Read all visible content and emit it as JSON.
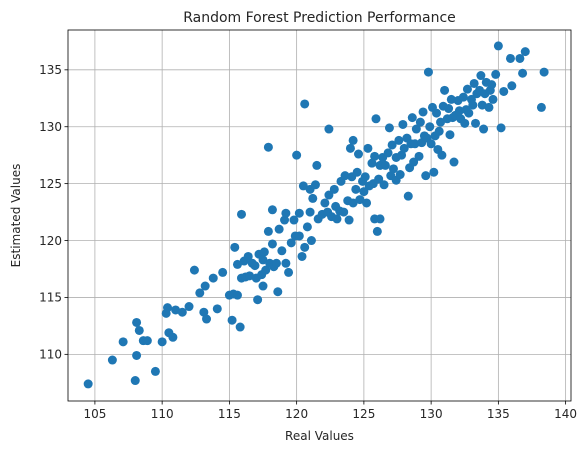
{
  "chart_data": {
    "type": "scatter",
    "title": "Random Forest Prediction Performance",
    "xlabel": "Real Values",
    "ylabel": "Estimated Values",
    "xlim": [
      103,
      140.4
    ],
    "ylim": [
      105.9,
      138.5
    ],
    "xticks": [
      105,
      110,
      115,
      120,
      125,
      130,
      135,
      140
    ],
    "yticks": [
      110,
      115,
      120,
      125,
      130,
      135
    ],
    "grid": true,
    "marker_color": "#1f77b4",
    "points": [
      [
        104.5,
        107.4
      ],
      [
        106.3,
        109.5
      ],
      [
        107.1,
        111.1
      ],
      [
        108.0,
        107.7
      ],
      [
        108.1,
        109.9
      ],
      [
        108.1,
        112.8
      ],
      [
        108.3,
        112.1
      ],
      [
        108.6,
        111.2
      ],
      [
        108.9,
        111.2
      ],
      [
        109.5,
        108.5
      ],
      [
        110.0,
        111.1
      ],
      [
        110.3,
        113.6
      ],
      [
        110.4,
        114.1
      ],
      [
        110.5,
        111.9
      ],
      [
        110.8,
        111.5
      ],
      [
        111.0,
        113.9
      ],
      [
        111.5,
        113.7
      ],
      [
        112.0,
        114.2
      ],
      [
        112.4,
        117.4
      ],
      [
        112.8,
        115.4
      ],
      [
        113.1,
        113.7
      ],
      [
        113.3,
        113.1
      ],
      [
        113.2,
        116.0
      ],
      [
        113.8,
        116.7
      ],
      [
        114.1,
        114.0
      ],
      [
        114.5,
        117.2
      ],
      [
        115.0,
        115.2
      ],
      [
        115.3,
        115.3
      ],
      [
        115.4,
        119.4
      ],
      [
        115.2,
        113.0
      ],
      [
        115.6,
        115.2
      ],
      [
        115.6,
        117.9
      ],
      [
        115.8,
        112.4
      ],
      [
        115.9,
        122.3
      ],
      [
        115.9,
        116.7
      ],
      [
        116.1,
        118.2
      ],
      [
        116.2,
        116.8
      ],
      [
        116.4,
        118.6
      ],
      [
        116.5,
        116.9
      ],
      [
        116.7,
        118.0
      ],
      [
        116.9,
        117.8
      ],
      [
        117.0,
        116.7
      ],
      [
        117.1,
        114.8
      ],
      [
        117.2,
        118.8
      ],
      [
        117.4,
        117.0
      ],
      [
        117.5,
        116.0
      ],
      [
        117.5,
        118.3
      ],
      [
        117.6,
        119.0
      ],
      [
        117.7,
        117.4
      ],
      [
        117.9,
        120.8
      ],
      [
        117.9,
        128.2
      ],
      [
        118.0,
        118.0
      ],
      [
        118.2,
        119.7
      ],
      [
        118.3,
        117.7
      ],
      [
        118.2,
        122.7
      ],
      [
        118.6,
        115.5
      ],
      [
        118.5,
        118.0
      ],
      [
        118.7,
        121.0
      ],
      [
        118.9,
        119.1
      ],
      [
        119.1,
        121.8
      ],
      [
        119.2,
        118.0
      ],
      [
        119.2,
        122.4
      ],
      [
        119.4,
        117.2
      ],
      [
        119.6,
        119.8
      ],
      [
        119.8,
        121.8
      ],
      [
        119.9,
        120.4
      ],
      [
        120.0,
        127.5
      ],
      [
        120.2,
        120.4
      ],
      [
        120.2,
        122.4
      ],
      [
        120.4,
        118.6
      ],
      [
        120.5,
        124.8
      ],
      [
        120.6,
        119.4
      ],
      [
        120.6,
        132.0
      ],
      [
        120.8,
        121.2
      ],
      [
        121.0,
        124.5
      ],
      [
        121.0,
        122.5
      ],
      [
        121.1,
        120.0
      ],
      [
        121.2,
        123.7
      ],
      [
        121.4,
        124.9
      ],
      [
        121.5,
        126.6
      ],
      [
        121.6,
        121.9
      ],
      [
        121.9,
        122.3
      ],
      [
        122.1,
        123.3
      ],
      [
        122.3,
        122.5
      ],
      [
        122.4,
        124.0
      ],
      [
        122.4,
        129.8
      ],
      [
        122.6,
        122.1
      ],
      [
        122.8,
        124.5
      ],
      [
        122.9,
        123.0
      ],
      [
        123.0,
        121.9
      ],
      [
        123.2,
        122.6
      ],
      [
        123.3,
        125.2
      ],
      [
        123.5,
        122.5
      ],
      [
        123.6,
        125.7
      ],
      [
        123.8,
        123.5
      ],
      [
        123.9,
        121.8
      ],
      [
        124.0,
        128.1
      ],
      [
        124.1,
        125.6
      ],
      [
        124.2,
        123.3
      ],
      [
        124.2,
        128.8
      ],
      [
        124.4,
        124.5
      ],
      [
        124.5,
        126.0
      ],
      [
        124.6,
        127.6
      ],
      [
        124.7,
        123.6
      ],
      [
        124.9,
        125.2
      ],
      [
        125.0,
        124.3
      ],
      [
        125.1,
        125.6
      ],
      [
        125.2,
        123.3
      ],
      [
        125.3,
        128.1
      ],
      [
        125.4,
        124.8
      ],
      [
        125.6,
        126.8
      ],
      [
        125.7,
        125.0
      ],
      [
        125.8,
        121.9
      ],
      [
        125.8,
        127.4
      ],
      [
        125.9,
        130.7
      ],
      [
        126.0,
        120.8
      ],
      [
        126.1,
        125.4
      ],
      [
        126.2,
        126.6
      ],
      [
        126.2,
        121.9
      ],
      [
        126.4,
        127.3
      ],
      [
        126.5,
        124.9
      ],
      [
        126.6,
        126.6
      ],
      [
        126.8,
        127.7
      ],
      [
        126.9,
        129.9
      ],
      [
        127.0,
        125.7
      ],
      [
        127.1,
        128.4
      ],
      [
        127.2,
        126.3
      ],
      [
        127.4,
        125.3
      ],
      [
        127.4,
        127.3
      ],
      [
        127.6,
        128.8
      ],
      [
        127.7,
        125.8
      ],
      [
        127.8,
        127.5
      ],
      [
        127.9,
        130.2
      ],
      [
        128.0,
        128.1
      ],
      [
        128.2,
        129.0
      ],
      [
        128.3,
        123.9
      ],
      [
        128.4,
        126.4
      ],
      [
        128.5,
        128.5
      ],
      [
        128.6,
        130.8
      ],
      [
        128.7,
        126.9
      ],
      [
        128.8,
        128.5
      ],
      [
        128.9,
        129.8
      ],
      [
        129.1,
        127.4
      ],
      [
        129.2,
        130.4
      ],
      [
        129.3,
        128.6
      ],
      [
        129.4,
        131.3
      ],
      [
        129.5,
        129.2
      ],
      [
        129.6,
        125.7
      ],
      [
        129.7,
        129.0
      ],
      [
        129.8,
        134.8
      ],
      [
        129.9,
        130.0
      ],
      [
        130.0,
        128.5
      ],
      [
        130.1,
        131.7
      ],
      [
        130.2,
        126.0
      ],
      [
        130.3,
        129.2
      ],
      [
        130.4,
        131.2
      ],
      [
        130.5,
        128.0
      ],
      [
        130.6,
        129.6
      ],
      [
        130.7,
        130.4
      ],
      [
        130.8,
        127.5
      ],
      [
        130.9,
        131.8
      ],
      [
        131.0,
        133.2
      ],
      [
        131.2,
        130.7
      ],
      [
        131.3,
        131.6
      ],
      [
        131.4,
        129.3
      ],
      [
        131.5,
        132.4
      ],
      [
        131.6,
        130.8
      ],
      [
        131.7,
        126.9
      ],
      [
        131.8,
        131.0
      ],
      [
        132.0,
        132.3
      ],
      [
        132.1,
        131.4
      ],
      [
        132.2,
        130.7
      ],
      [
        132.4,
        132.6
      ],
      [
        132.5,
        130.3
      ],
      [
        132.6,
        131.5
      ],
      [
        132.7,
        133.3
      ],
      [
        132.8,
        131.2
      ],
      [
        133.0,
        132.4
      ],
      [
        133.1,
        131.9
      ],
      [
        133.2,
        133.8
      ],
      [
        133.3,
        130.3
      ],
      [
        133.4,
        132.9
      ],
      [
        133.6,
        133.2
      ],
      [
        133.7,
        134.5
      ],
      [
        133.8,
        131.9
      ],
      [
        133.9,
        129.8
      ],
      [
        134.0,
        132.9
      ],
      [
        134.1,
        133.9
      ],
      [
        134.3,
        131.7
      ],
      [
        134.4,
        133.2
      ],
      [
        134.5,
        133.7
      ],
      [
        134.6,
        132.4
      ],
      [
        134.8,
        134.6
      ],
      [
        135.0,
        137.1
      ],
      [
        135.2,
        129.9
      ],
      [
        135.4,
        133.1
      ],
      [
        135.9,
        136.0
      ],
      [
        136.0,
        133.6
      ],
      [
        136.6,
        136.0
      ],
      [
        136.8,
        134.7
      ],
      [
        137.0,
        136.6
      ],
      [
        138.2,
        131.7
      ],
      [
        138.4,
        134.8
      ]
    ]
  }
}
